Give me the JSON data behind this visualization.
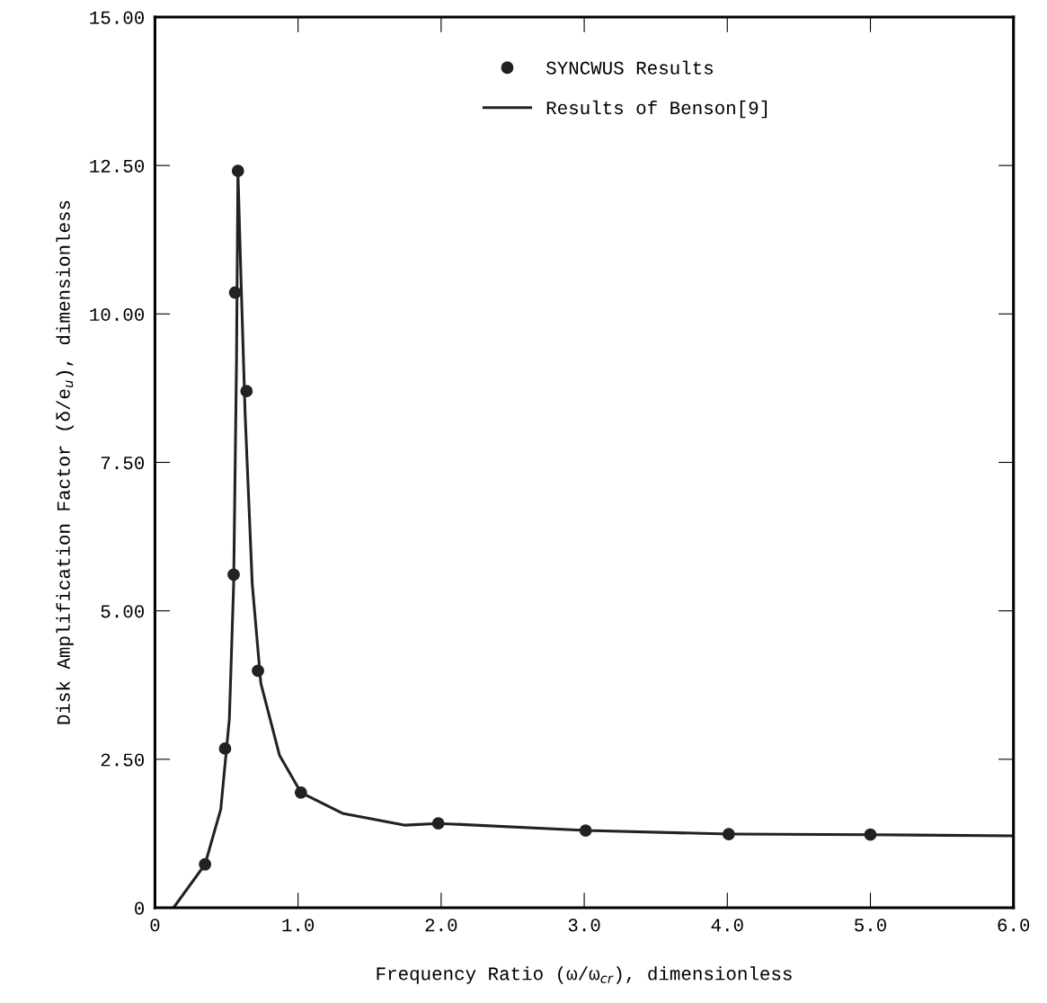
{
  "chart_data": {
    "type": "line",
    "xlabel": "Frequency Ratio (ω/ω$_{cr}$), dimensionless",
    "ylabel": "Disk Amplification Factor (δ/e$_{u}$), dimensionless",
    "series": [
      {
        "name": "SYNCWUS Results",
        "type": "scatter",
        "marker": "circle",
        "color": "#222222",
        "x": [
          0.35,
          0.49,
          0.55,
          0.56,
          0.58,
          0.64,
          0.72,
          1.02,
          1.98,
          3.01,
          4.01,
          5.0
        ],
        "values": [
          0.73,
          2.68,
          5.61,
          10.36,
          12.41,
          8.7,
          3.99,
          1.94,
          1.42,
          1.3,
          1.24,
          1.23
        ]
      },
      {
        "name": "Results of Benson[9]",
        "line_style": "solid",
        "color": "#222222",
        "x": [
          0.13,
          0.35,
          0.46,
          0.52,
          0.55,
          0.57,
          0.58,
          0.6,
          0.63,
          0.68,
          0.74,
          0.87,
          1.02,
          1.31,
          1.75,
          1.98,
          3.01,
          4.01,
          5.0,
          6.0
        ],
        "values": [
          0,
          0.73,
          1.66,
          3.18,
          5.45,
          9.23,
          12.4,
          10.7,
          8.32,
          5.45,
          3.78,
          2.57,
          1.94,
          1.59,
          1.39,
          1.42,
          1.3,
          1.24,
          1.23,
          1.21
        ]
      }
    ],
    "xlim": [
      0,
      6
    ],
    "ylim": [
      0,
      15
    ],
    "xticks": [
      0,
      {
        "value": 1,
        "label": "1.0"
      },
      {
        "value": 2,
        "label": "2.0"
      },
      {
        "value": 3,
        "label": "3.0"
      },
      {
        "value": 4,
        "label": "4.0"
      },
      {
        "value": 5,
        "label": "5.0"
      },
      {
        "value": 6,
        "label": "6.0"
      }
    ],
    "yticks": [
      0,
      {
        "value": 2.5,
        "label": "2.50"
      },
      {
        "value": 5,
        "label": "5.00"
      },
      {
        "value": 7.5,
        "label": "7.50"
      },
      {
        "value": 10,
        "label": "10.00"
      },
      {
        "value": 12.5,
        "label": "12.50"
      },
      {
        "value": 15,
        "label": "15.00"
      }
    ],
    "grid": false,
    "legend": "top"
  }
}
